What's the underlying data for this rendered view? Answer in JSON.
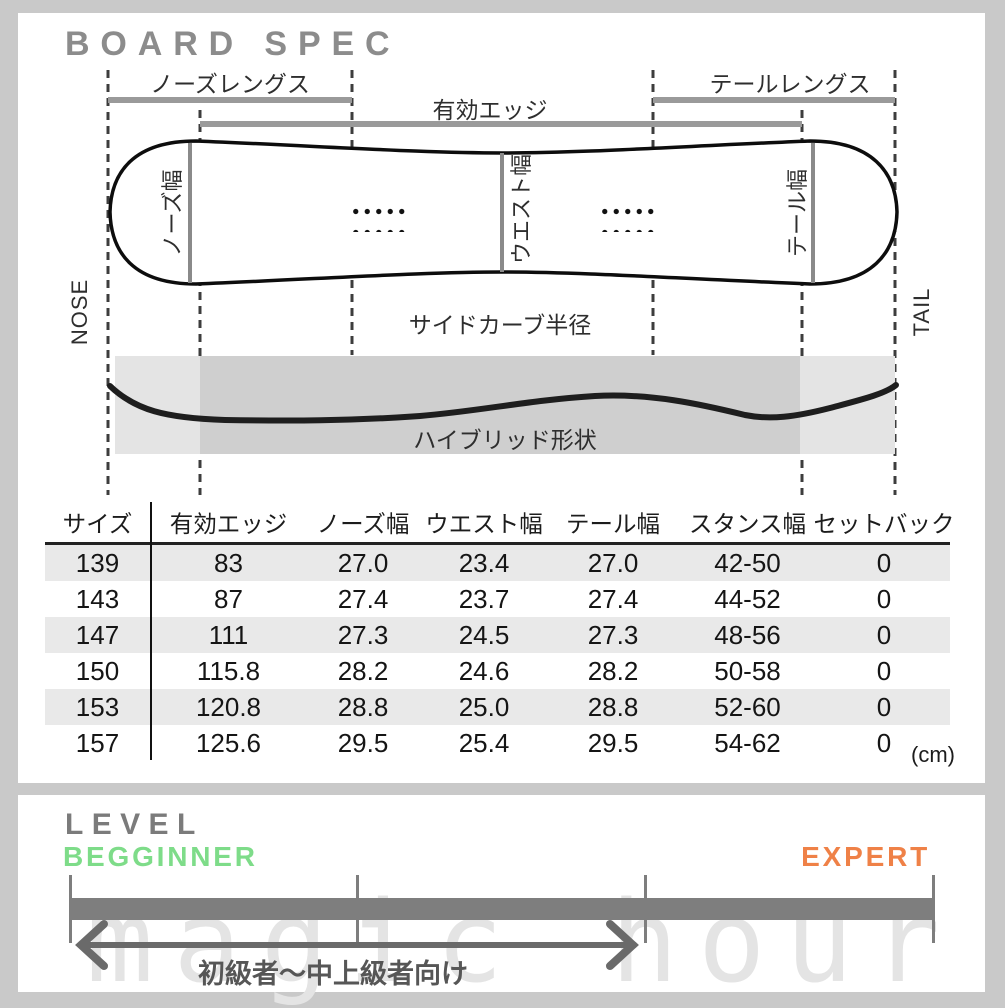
{
  "board_spec": {
    "title": "BOARD SPEC",
    "diagram": {
      "nose_length_label": "ノーズレングス",
      "effective_edge_label": "有効エッジ",
      "tail_length_label": "テールレングス",
      "nose_width_label": "ノーズ幅",
      "waist_width_label": "ウエスト幅",
      "tail_width_label": "テール幅",
      "nose_end_label": "NOSE",
      "tail_end_label": "TAIL",
      "sidecut_radius_label": "サイドカーブ半径",
      "profile_shape_label": "ハイブリッド形状"
    },
    "table": {
      "headers": [
        "サイズ",
        "有効エッジ",
        "ノーズ幅",
        "ウエスト幅",
        "テール幅",
        "スタンス幅",
        "セットバック"
      ],
      "rows": [
        [
          "139",
          "83",
          "27.0",
          "23.4",
          "27.0",
          "42-50",
          "0"
        ],
        [
          "143",
          "87",
          "27.4",
          "23.7",
          "27.4",
          "44-52",
          "0"
        ],
        [
          "147",
          "111",
          "27.3",
          "24.5",
          "27.3",
          "48-56",
          "0"
        ],
        [
          "150",
          "115.8",
          "28.2",
          "24.6",
          "28.2",
          "50-58",
          "0"
        ],
        [
          "153",
          "120.8",
          "28.8",
          "25.0",
          "28.8",
          "52-60",
          "0"
        ],
        [
          "157",
          "125.6",
          "29.5",
          "25.4",
          "29.5",
          "54-62",
          "0"
        ]
      ],
      "unit_note": "(cm)"
    }
  },
  "level": {
    "title": "LEVEL",
    "beginner_label": "BEGGINNER",
    "expert_label": "EXPERT",
    "range_label": "初級者〜中上級者向け",
    "colors": {
      "beginner": "#7edc89",
      "expert": "#ef8147",
      "bar": "#7e7e7e"
    },
    "scale": {
      "ticks_pct": [
        0,
        33,
        67,
        100
      ],
      "range_start_pct": 1,
      "range_end_pct": 65
    }
  },
  "watermark": "magic hour"
}
